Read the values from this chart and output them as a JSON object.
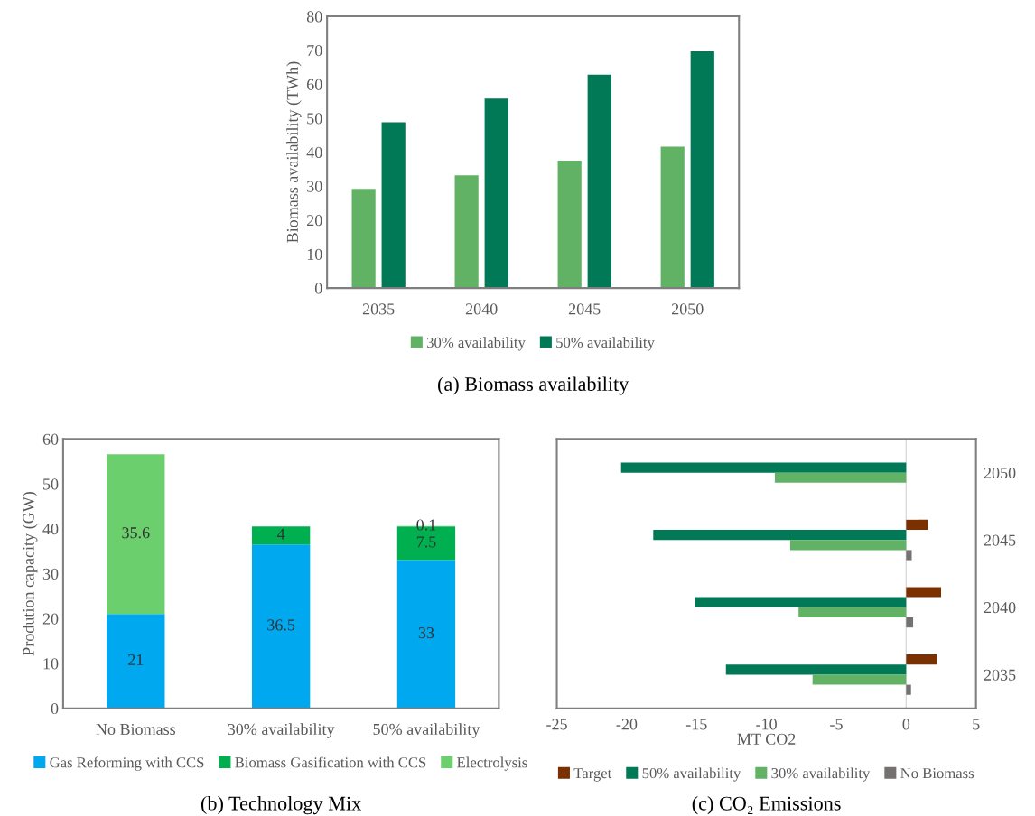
{
  "chart_data": [
    {
      "type": "bar",
      "title": "(a) Biomass availability",
      "ylabel": "Biomass availability (TWh)",
      "categories": [
        "2035",
        "2040",
        "2045",
        "2050"
      ],
      "series": [
        {
          "name": "30% availability",
          "color": "#62b266",
          "values": [
            29.2,
            33.2,
            37.5,
            41.6
          ]
        },
        {
          "name": "50% availability",
          "color": "#027956",
          "values": [
            48.8,
            55.8,
            62.8,
            69.7
          ]
        }
      ],
      "ylim": [
        0,
        80
      ],
      "yticks": [
        0,
        10,
        20,
        30,
        40,
        50,
        60,
        70,
        80
      ],
      "legend": "bottom"
    },
    {
      "type": "bar",
      "stacked": true,
      "title": "(b) Technology Mix",
      "ylabel": "Prodution capacity (GW)",
      "categories": [
        "No Biomass",
        "30% availability",
        "50% availability"
      ],
      "series": [
        {
          "name": "Gas Reforming with CCS",
          "color": "#00a8ef",
          "values": [
            21,
            36.5,
            33
          ],
          "value_labels": [
            "21",
            "36.5",
            "33"
          ]
        },
        {
          "name": "Biomass Gasification with CCS",
          "color": "#00b050",
          "values": [
            null,
            4,
            7.5
          ],
          "value_labels": [
            null,
            "4",
            "7.5"
          ]
        },
        {
          "name": "Electrolysis",
          "color": "#6ccf6e",
          "values": [
            35.6,
            null,
            0.1
          ],
          "value_labels": [
            "35.6",
            null,
            "0.1"
          ]
        }
      ],
      "ylim": [
        0,
        60
      ],
      "yticks": [
        0,
        10,
        20,
        30,
        40,
        50,
        60
      ],
      "legend": "bottom"
    },
    {
      "type": "bar",
      "orientation": "horizontal",
      "title": "(c) CO₂ Emissions",
      "xlabel": "MT CO2",
      "categories": [
        "2050",
        "2045",
        "2040",
        "2035"
      ],
      "series": [
        {
          "name": "Target",
          "color": "#7b3000",
          "values": [
            null,
            1.55,
            2.5,
            2.2
          ]
        },
        {
          "name": "50% availability",
          "color": "#027956",
          "values": [
            -20.4,
            -18.1,
            -15.1,
            -12.9
          ]
        },
        {
          "name": "30% availability",
          "color": "#62b266",
          "values": [
            -9.4,
            -8.3,
            -7.7,
            -6.7
          ]
        },
        {
          "name": "No Biomass",
          "color": "#767171",
          "values": [
            null,
            0.4,
            0.5,
            0.35
          ]
        }
      ],
      "xlim": [
        -25,
        5
      ],
      "xticks": [
        -25,
        -20,
        -15,
        -10,
        -5,
        0,
        5
      ],
      "ref_lines": [
        {
          "axis": "x",
          "value": 0,
          "color": "#d9d9d9"
        }
      ],
      "legend": "bottom"
    }
  ]
}
